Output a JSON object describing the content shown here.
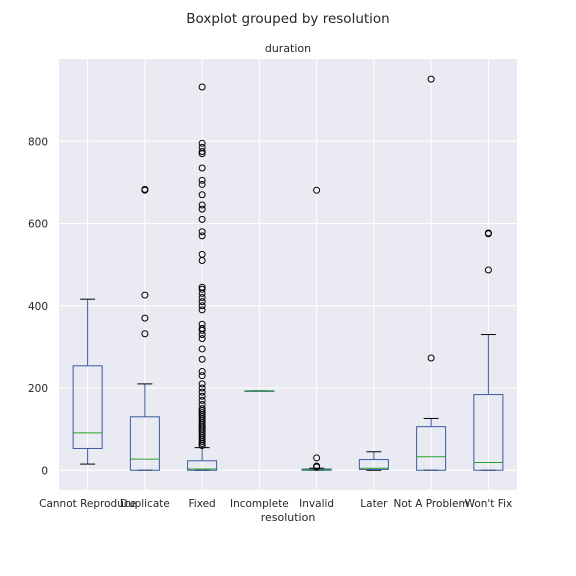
{
  "chart_data": {
    "type": "boxplot",
    "title": "Boxplot grouped by resolution",
    "subtitle": "duration",
    "xlabel": "resolution",
    "ylabel": "",
    "ylim": [
      -48,
      1000
    ],
    "yticks": [
      0,
      200,
      400,
      600,
      800
    ],
    "grid": true,
    "colors": {
      "box": "#3a5ba0",
      "median": "#2ca02c",
      "background": "#eaeaf2",
      "grid": "#ffffff",
      "flier": "#000000"
    },
    "categories": [
      "Cannot Reproduce",
      "Duplicate",
      "Fixed",
      "Incomplete",
      "Invalid",
      "Later",
      "Not A Problem",
      "Won't Fix"
    ],
    "boxes": [
      {
        "whislo": 15,
        "q1": 53,
        "med": 91,
        "q3": 254,
        "whishi": 416,
        "fliers": []
      },
      {
        "whislo": 0,
        "q1": 0,
        "med": 27,
        "q3": 130,
        "whishi": 210,
        "fliers": [
          332,
          370,
          426,
          681,
          683
        ]
      },
      {
        "whislo": 0,
        "q1": 0,
        "med": 3,
        "q3": 23,
        "whishi": 55,
        "fliers": [
          60,
          65,
          70,
          75,
          80,
          85,
          90,
          95,
          100,
          105,
          110,
          115,
          120,
          125,
          130,
          135,
          140,
          145,
          150,
          160,
          170,
          180,
          190,
          200,
          210,
          230,
          240,
          270,
          295,
          320,
          330,
          340,
          345,
          355,
          390,
          400,
          410,
          420,
          430,
          440,
          445,
          510,
          525,
          570,
          580,
          610,
          635,
          645,
          670,
          695,
          705,
          735,
          770,
          775,
          785,
          795,
          932
        ]
      },
      {
        "whislo": 193,
        "q1": 193,
        "med": 193,
        "q3": 193,
        "whishi": 193,
        "fliers": []
      },
      {
        "whislo": 0,
        "q1": 0,
        "med": 1,
        "q3": 3,
        "whishi": 5,
        "fliers": [
          8,
          10,
          30,
          681
        ]
      },
      {
        "whislo": 0,
        "q1": 2,
        "med": 5,
        "q3": 26,
        "whishi": 45,
        "fliers": []
      },
      {
        "whislo": 0,
        "q1": 0,
        "med": 33,
        "q3": 106,
        "whishi": 126,
        "fliers": [
          273,
          951
        ]
      },
      {
        "whislo": 0,
        "q1": 0,
        "med": 19,
        "q3": 184,
        "whishi": 330,
        "fliers": [
          487,
          575,
          577
        ]
      }
    ]
  }
}
